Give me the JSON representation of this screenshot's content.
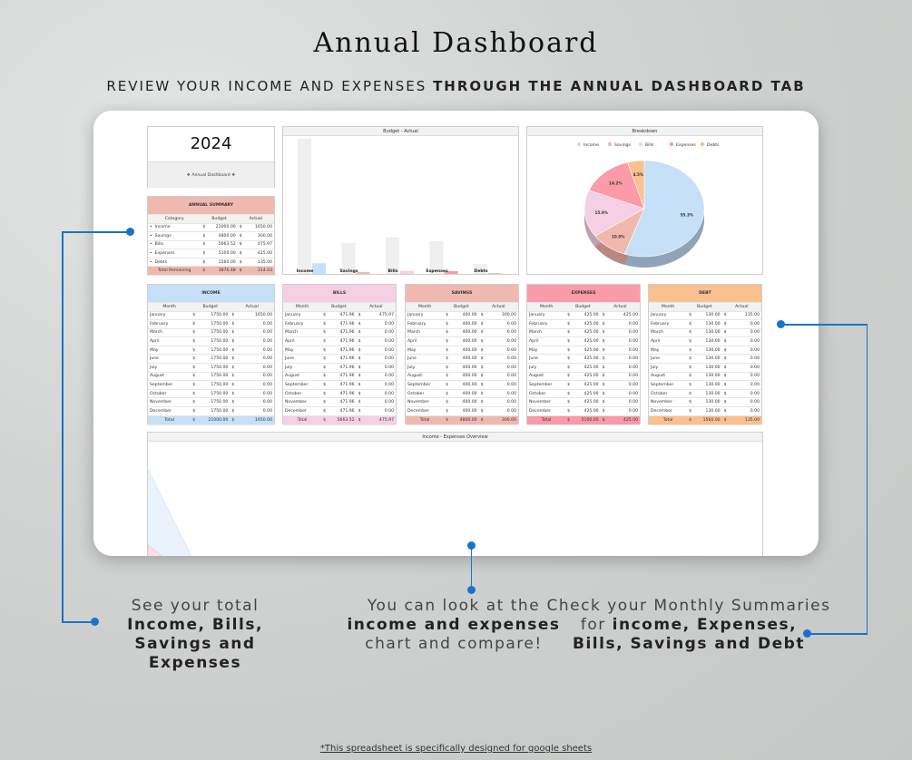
{
  "header": {
    "title": "Annual Dashboard",
    "subtitle_light": "REVIEW YOUR INCOME AND EXPENSES",
    "subtitle_bold": "THROUGH THE ANNUAL DASHBOARD TAB"
  },
  "year": "2024",
  "dashboard_label": "❖ Annual Dashboard ❖",
  "colors": {
    "income": "#c5e0f7",
    "savings": "#f0b9b0",
    "bills": "#f5cfe3",
    "expenses": "#fb9aa8",
    "debt": "#fbc08f",
    "budget_bar": "#efefef",
    "accent": "#1a73c9"
  },
  "summary": {
    "title": "ANNUAL SUMMARY",
    "columns": [
      "Category",
      "Budget",
      "Actual"
    ],
    "rows": [
      {
        "cat": "Income",
        "budget": "21000.00",
        "actual": "1650.00"
      },
      {
        "cat": "Savings",
        "budget": "4800.00",
        "actual": "300.00"
      },
      {
        "cat": "Bills",
        "budget": "5663.52",
        "actual": "475.97"
      },
      {
        "cat": "Expenses",
        "budget": "5100.00",
        "actual": "425.00"
      },
      {
        "cat": "Debts",
        "budget": "1560.00",
        "actual": "135.00"
      }
    ],
    "total": {
      "cat": "Total Remaining",
      "budget": "3876.48",
      "actual": "314.03"
    },
    "currency": "$"
  },
  "chart_data": [
    {
      "type": "bar",
      "title": "Budget - Actual",
      "categories": [
        "Income",
        "Savings",
        "Bills",
        "Expenses",
        "Debts"
      ],
      "series": [
        {
          "name": "Budget",
          "values": [
            21000,
            4800,
            5663.52,
            5100,
            1560
          ]
        },
        {
          "name": "Actual",
          "values": [
            1650,
            300,
            475.97,
            425,
            135
          ]
        }
      ],
      "ylim": [
        0,
        21000
      ]
    },
    {
      "type": "pie",
      "title": "Breakdown",
      "legend": "top",
      "labels": [
        "Income",
        "Savings",
        "Bills",
        "Expenses",
        "Debts"
      ],
      "values": [
        55.3,
        10.0,
        15.9,
        14.2,
        4.5
      ],
      "value_labels": [
        "55.3%",
        "10.0%",
        "15.9%",
        "14.2%",
        "4.5%"
      ]
    },
    {
      "type": "area",
      "title": "Income - Expenses Overview"
    }
  ],
  "months": [
    "January",
    "February",
    "March",
    "April",
    "May",
    "June",
    "July",
    "August",
    "September",
    "October",
    "November",
    "December"
  ],
  "tables": [
    {
      "key": "income",
      "title": "INCOME",
      "budget": "1750.00",
      "actual": [
        "1650.00",
        "0.00",
        "0.00",
        "0.00",
        "0.00",
        "0.00",
        "0.00",
        "0.00",
        "0.00",
        "0.00",
        "0.00",
        "0.00"
      ],
      "total_budget": "21000.00",
      "total_actual": "1650.00"
    },
    {
      "key": "bills",
      "title": "BILLS",
      "budget": "471.96",
      "actual": [
        "475.97",
        "0.00",
        "0.00",
        "0.00",
        "0.00",
        "0.00",
        "0.00",
        "0.00",
        "0.00",
        "0.00",
        "0.00",
        "0.00"
      ],
      "total_budget": "5663.52",
      "total_actual": "475.97"
    },
    {
      "key": "savings",
      "title": "SAVINGS",
      "budget": "400.00",
      "actual": [
        "300.00",
        "0.00",
        "0.00",
        "0.00",
        "0.00",
        "0.00",
        "0.00",
        "0.00",
        "0.00",
        "0.00",
        "0.00",
        "0.00"
      ],
      "total_budget": "4800.00",
      "total_actual": "300.00"
    },
    {
      "key": "expenses",
      "title": "EXPENSES",
      "budget": "425.00",
      "actual": [
        "425.00",
        "0.00",
        "0.00",
        "0.00",
        "0.00",
        "0.00",
        "0.00",
        "0.00",
        "0.00",
        "0.00",
        "0.00",
        "0.00"
      ],
      "total_budget": "5100.00",
      "total_actual": "425.00"
    },
    {
      "key": "debt",
      "title": "DEBT",
      "budget": "130.00",
      "actual": [
        "135.00",
        "0.00",
        "0.00",
        "0.00",
        "0.00",
        "0.00",
        "0.00",
        "0.00",
        "0.00",
        "0.00",
        "0.00",
        "0.00"
      ],
      "total_budget": "1560.00",
      "total_actual": "135.00"
    }
  ],
  "table_labels": {
    "month": "Month",
    "budget": "Budget",
    "actual": "Actual",
    "total": "Total"
  },
  "captions": {
    "left": {
      "l1": "See your total",
      "l2": "Income, Bills,",
      "l3": "Savings and Expenses"
    },
    "middle": {
      "l1": "You can look at the",
      "l2": "income and expenses",
      "l3": "chart and compare!"
    },
    "right": {
      "l1": "Check your Monthly Summaries",
      "l2a": "for ",
      "l2b": "income, Expenses,",
      "l3": "Bills, Savings and Debt"
    }
  },
  "footnote": "*This spreadsheet is specifically designed for google sheets"
}
